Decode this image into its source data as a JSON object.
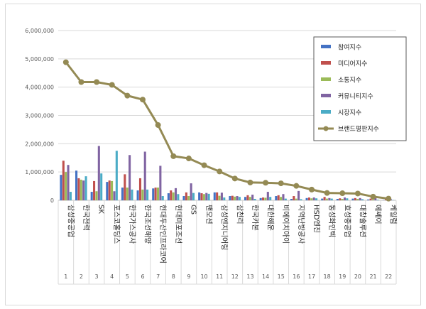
{
  "chart_data": {
    "type": "bar",
    "categories": [
      "삼성중공업",
      "한국전력",
      "SK",
      "포스코홀딩스",
      "한국가스공사",
      "한국조선해양",
      "현대두산인프라코어",
      "현대미포조선",
      "GS",
      "팬오션",
      "삼성엔지니어링",
      "삼천리",
      "한국카본",
      "대한해운",
      "비에이치아이",
      "지역난방공사",
      "HSD엔진",
      "동성화인텍",
      "효성중공업",
      "대창솔루션",
      "에쎄이",
      "케일럼"
    ],
    "category_numbers": [
      "1",
      "2",
      "3",
      "4",
      "5",
      "6",
      "7",
      "8",
      "9",
      "10",
      "11",
      "12",
      "13",
      "14",
      "15",
      "16",
      "17",
      "18",
      "19",
      "20",
      "21",
      "22"
    ],
    "ylim": [
      0,
      6000000
    ],
    "yticks": [
      "0",
      "1,000,000",
      "2,000,000",
      "3,000,000",
      "4,000,000",
      "5,000,000",
      "6,000,000"
    ],
    "ytick_values": [
      0,
      1000000,
      2000000,
      3000000,
      4000000,
      5000000,
      6000000
    ],
    "grid": true,
    "legend_position": "right",
    "series": [
      {
        "name": "참여지수",
        "type": "bar",
        "color": "#4472c4",
        "values": [
          900000,
          1050000,
          300000,
          650000,
          450000,
          350000,
          420000,
          250000,
          150000,
          280000,
          280000,
          150000,
          120000,
          80000,
          150000,
          50000,
          80000,
          60000,
          50000,
          60000,
          30000,
          10000
        ]
      },
      {
        "name": "미디어지수",
        "type": "bar",
        "color": "#c0504d",
        "values": [
          1400000,
          780000,
          680000,
          700000,
          920000,
          780000,
          450000,
          350000,
          280000,
          250000,
          280000,
          160000,
          180000,
          100000,
          180000,
          150000,
          100000,
          120000,
          70000,
          80000,
          60000,
          50000
        ]
      },
      {
        "name": "소통지수",
        "type": "bar",
        "color": "#9bbb59",
        "values": [
          1000000,
          730000,
          320000,
          680000,
          450000,
          380000,
          450000,
          280000,
          150000,
          220000,
          160000,
          130000,
          120000,
          90000,
          120000,
          60000,
          70000,
          60000,
          50000,
          50000,
          30000,
          20000
        ]
      },
      {
        "name": "커뮤니티지수",
        "type": "bar",
        "color": "#8064a2",
        "values": [
          1250000,
          700000,
          1920000,
          320000,
          1600000,
          1720000,
          1220000,
          430000,
          600000,
          260000,
          270000,
          150000,
          200000,
          300000,
          220000,
          330000,
          100000,
          80000,
          100000,
          80000,
          80000,
          40000
        ]
      },
      {
        "name": "시장지수",
        "type": "bar",
        "color": "#4bacc6",
        "values": [
          300000,
          850000,
          950000,
          1750000,
          380000,
          380000,
          150000,
          220000,
          260000,
          230000,
          100000,
          120000,
          50000,
          120000,
          60000,
          40000,
          70000,
          60000,
          70000,
          40000,
          20000,
          10000
        ]
      },
      {
        "name": "브랜드평판지수",
        "type": "line",
        "color": "#948a54",
        "values": [
          4880000,
          4180000,
          4180000,
          4080000,
          3700000,
          3560000,
          2660000,
          1560000,
          1480000,
          1240000,
          1020000,
          770000,
          630000,
          620000,
          600000,
          510000,
          380000,
          260000,
          250000,
          240000,
          130000,
          60000
        ]
      }
    ]
  }
}
